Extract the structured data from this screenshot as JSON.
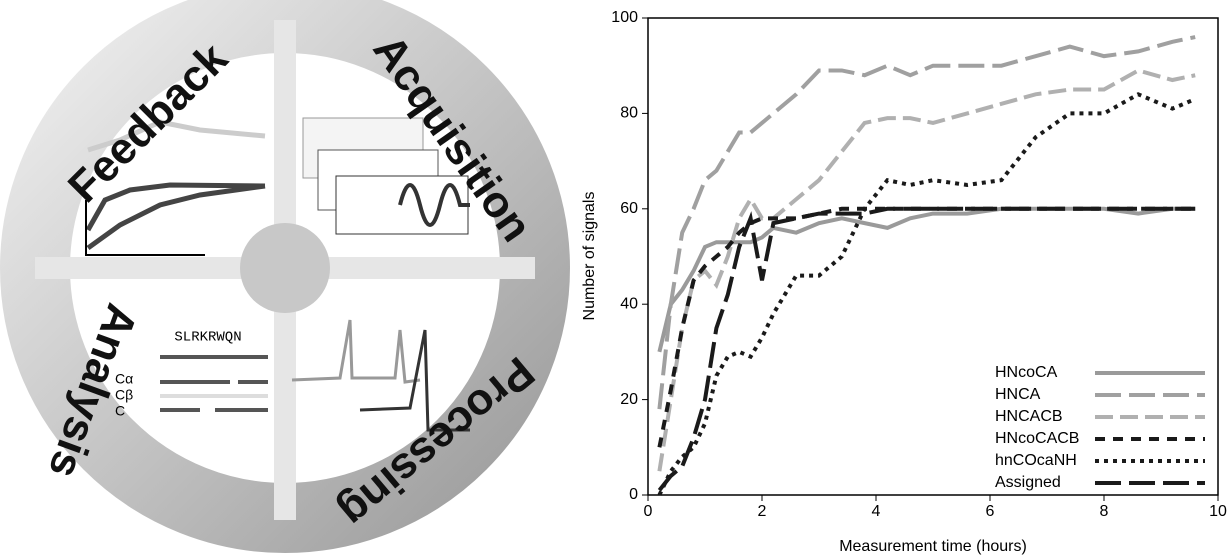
{
  "diagram": {
    "stages": [
      "Feedback",
      "Acquisition",
      "Processing",
      "Analysis"
    ],
    "sequence": "SLRKRWQN",
    "atoms": [
      "Cα",
      "Cβ",
      "C"
    ]
  },
  "chart_data": {
    "type": "line",
    "x_label": "Measurement time (hours)",
    "y_label": "Number of signals",
    "xlim": [
      0,
      10
    ],
    "ylim": [
      0,
      100
    ],
    "xticks": [
      0,
      2,
      4,
      6,
      8,
      10
    ],
    "yticks": [
      0,
      20,
      40,
      60,
      80,
      100
    ],
    "grid": false,
    "legend": "lower right",
    "x": [
      0.2,
      0.4,
      0.6,
      0.8,
      1.0,
      1.2,
      1.4,
      1.6,
      1.8,
      2.0,
      2.2,
      2.6,
      3.0,
      3.4,
      3.8,
      4.2,
      4.6,
      5.0,
      5.6,
      6.2,
      6.8,
      7.4,
      8.0,
      8.6,
      9.2,
      9.6
    ],
    "series": [
      {
        "name": "HNcoCA",
        "color": "#9a9a9a",
        "dash": "solid",
        "values": [
          30,
          40,
          43,
          47,
          52,
          53,
          53,
          53,
          53,
          54,
          56,
          55,
          57,
          58,
          57,
          56,
          58,
          59,
          59,
          60,
          60,
          60,
          60,
          59,
          60,
          60
        ]
      },
      {
        "name": "HNCA",
        "color": "#a0a0a0",
        "dash": "long",
        "values": [
          18,
          40,
          55,
          60,
          66,
          68,
          72,
          76,
          76,
          78,
          80,
          84,
          89,
          89,
          88,
          90,
          88,
          90,
          90,
          90,
          92,
          94,
          92,
          93,
          95,
          96
        ]
      },
      {
        "name": "HNCACB",
        "color": "#b0b0b0",
        "dash": "medium",
        "values": [
          5,
          20,
          35,
          45,
          47,
          44,
          50,
          58,
          62,
          58,
          58,
          62,
          66,
          72,
          78,
          79,
          79,
          78,
          80,
          82,
          84,
          85,
          85,
          89,
          87,
          88
        ]
      },
      {
        "name": "HNcoCACB",
        "color": "#1a1a1a",
        "dash": "short",
        "values": [
          10,
          22,
          35,
          45,
          48,
          50,
          52,
          55,
          57,
          58,
          58,
          58,
          59,
          60,
          60,
          60,
          60,
          60,
          60,
          60,
          60,
          60,
          60,
          60,
          60,
          60
        ]
      },
      {
        "name": "hnCOcaNH",
        "color": "#1a1a1a",
        "dash": "dotted",
        "values": [
          0,
          5,
          8,
          10,
          15,
          25,
          29,
          30,
          29,
          33,
          38,
          46,
          46,
          50,
          60,
          66,
          65,
          66,
          65,
          66,
          75,
          80,
          80,
          84,
          81,
          83
        ]
      },
      {
        "name": "Assigned",
        "color": "#1a1a1a",
        "dash": "long",
        "values": [
          1,
          4,
          6,
          12,
          20,
          35,
          42,
          52,
          58,
          45,
          57,
          58,
          59,
          59,
          59,
          60,
          60,
          60,
          60,
          60,
          60,
          60,
          60,
          60,
          60,
          60
        ]
      }
    ]
  }
}
